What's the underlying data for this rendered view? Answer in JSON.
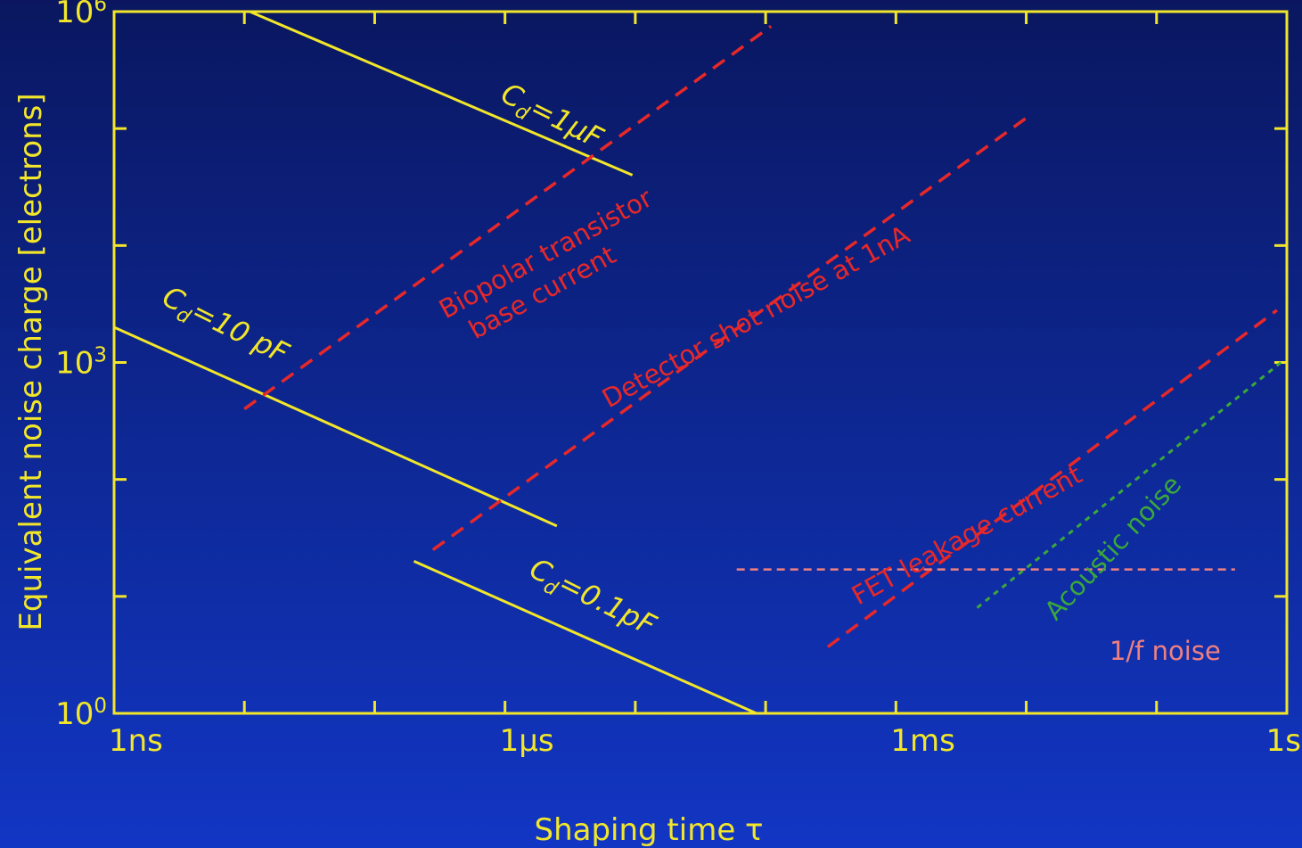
{
  "colors": {
    "axis": "#f2e62a",
    "capacitance": "#f2e62a",
    "red_noise": "#e82828",
    "one_over_f": "#f08080",
    "acoustic": "#3aa83a"
  },
  "chart_data": {
    "type": "line",
    "x_scale": "log",
    "y_scale": "log",
    "xlabel": "Shaping time τ",
    "ylabel": "Equivalent noise charge [electrons]",
    "xlim": [
      "1ns",
      "1s"
    ],
    "ylim": [
      "10^0",
      "10^6"
    ],
    "x_ticks": [
      {
        "value_s": 1e-09,
        "label": "1ns"
      },
      {
        "value_s": 1e-06,
        "label": "1μs"
      },
      {
        "value_s": 0.001,
        "label": "1ms"
      },
      {
        "value_s": 1,
        "label": "1s"
      }
    ],
    "y_ticks": [
      {
        "value": 1,
        "base": "10",
        "exp": "0"
      },
      {
        "value": 1000,
        "base": "10",
        "exp": "3"
      },
      {
        "value": 1000000,
        "base": "10",
        "exp": "6"
      }
    ],
    "series": [
      {
        "key": "cd_1uf",
        "label_main": "C",
        "label_sub": "d",
        "label_rest": "=1μF",
        "style": "capacitance",
        "points": [
          [
            1.1e-08,
            1000000.0
          ],
          [
            9.5e-06,
            40000.0
          ]
        ]
      },
      {
        "key": "cd_10pf",
        "label_main": "C",
        "label_sub": "d",
        "label_rest": "=10 pF",
        "style": "capacitance",
        "points": [
          [
            1e-09,
            2000.0
          ],
          [
            2.5e-06,
            40
          ]
        ]
      },
      {
        "key": "cd_01pf",
        "label_main": "C",
        "label_sub": "d",
        "label_rest": "=0.1pF",
        "style": "capacitance",
        "points": [
          [
            2e-07,
            20
          ],
          [
            8.5e-05,
            1.0
          ]
        ]
      },
      {
        "key": "bipolar",
        "label_lines": [
          "Biopolar transistor",
          "base current"
        ],
        "style": "red_noise",
        "points": [
          [
            1e-08,
            400
          ],
          [
            0.00011,
            750000.0
          ]
        ]
      },
      {
        "key": "detector",
        "label_lines": [
          "Detector shot noise at 1nA"
        ],
        "style": "red_noise",
        "points": [
          [
            2.8e-07,
            25
          ],
          [
            0.0107,
            130000.0
          ]
        ]
      },
      {
        "key": "fet",
        "label_lines": [
          "FET leakage current"
        ],
        "style": "red_noise",
        "points": [
          [
            0.0003,
            3.7
          ],
          [
            0.84,
            2800.0
          ]
        ]
      },
      {
        "key": "acoustic",
        "label_lines": [
          "Acoustic noise"
        ],
        "style": "acoustic",
        "points": [
          [
            0.0042,
            8
          ],
          [
            0.9,
            1000.0
          ]
        ]
      },
      {
        "key": "one_over_f",
        "label_lines": [
          "1/f noise"
        ],
        "style": "one_over_f",
        "points": [
          [
            6e-05,
            17
          ],
          [
            0.4,
            17
          ]
        ]
      }
    ]
  }
}
